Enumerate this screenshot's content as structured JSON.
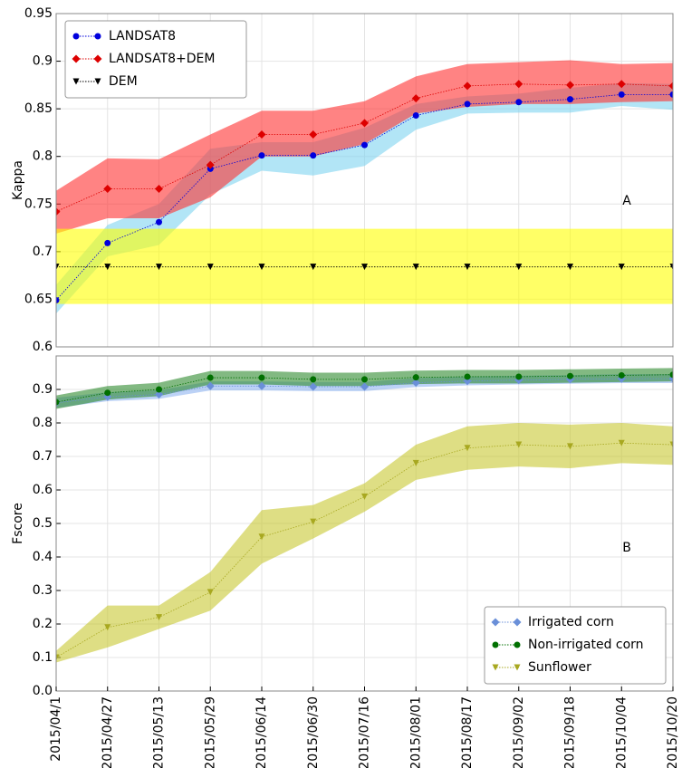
{
  "chart_data": [
    {
      "type": "line",
      "ylabel": "Kappa",
      "annotation": "A",
      "ylim": [
        0.6,
        0.95
      ],
      "yticks": [
        0.6,
        0.65,
        0.7,
        0.75,
        0.8,
        0.85,
        0.9,
        0.95
      ],
      "grid": true,
      "legend": "upper left",
      "series": [
        {
          "name": "LANDSAT8",
          "color": "#0000dd",
          "band_color": "#7fd4f0",
          "marker": "circle",
          "values": [
            0.649,
            0.709,
            0.731,
            0.787,
            0.801,
            0.801,
            0.812,
            0.843,
            0.855,
            0.857,
            0.86,
            0.865,
            0.865
          ],
          "lower": [
            0.635,
            0.695,
            0.707,
            0.76,
            0.785,
            0.78,
            0.79,
            0.828,
            0.845,
            0.846,
            0.846,
            0.853,
            0.849
          ],
          "upper": [
            0.665,
            0.728,
            0.75,
            0.808,
            0.815,
            0.815,
            0.83,
            0.855,
            0.863,
            0.866,
            0.872,
            0.877,
            0.876
          ]
        },
        {
          "name": "LANDSAT8+DEM",
          "color": "#dd0000",
          "band_color": "#ff3030",
          "marker": "diamond",
          "values": [
            0.742,
            0.766,
            0.766,
            0.791,
            0.823,
            0.823,
            0.835,
            0.861,
            0.874,
            0.876,
            0.875,
            0.876,
            0.874
          ],
          "lower": [
            0.719,
            0.735,
            0.735,
            0.757,
            0.8,
            0.8,
            0.813,
            0.845,
            0.852,
            0.855,
            0.855,
            0.857,
            0.858
          ],
          "upper": [
            0.764,
            0.798,
            0.797,
            0.823,
            0.848,
            0.848,
            0.858,
            0.884,
            0.897,
            0.899,
            0.901,
            0.897,
            0.898
          ]
        },
        {
          "name": "DEM",
          "color": "#000000",
          "band_color": "#ffff00",
          "marker": "triangle",
          "values": [
            0.684,
            0.684,
            0.684,
            0.684,
            0.684,
            0.684,
            0.684,
            0.684,
            0.684,
            0.684,
            0.684,
            0.684,
            0.684
          ],
          "lower": [
            0.645,
            0.645,
            0.645,
            0.645,
            0.645,
            0.645,
            0.645,
            0.645,
            0.645,
            0.645,
            0.645,
            0.645,
            0.645
          ],
          "upper": [
            0.724,
            0.724,
            0.724,
            0.724,
            0.724,
            0.724,
            0.724,
            0.724,
            0.724,
            0.724,
            0.724,
            0.724,
            0.724
          ]
        }
      ]
    },
    {
      "type": "line",
      "ylabel": "Fscore",
      "annotation": "B",
      "ylim": [
        0,
        1.0
      ],
      "yticks": [
        {
          "value": 0,
          "label": "0.0"
        },
        0.1,
        0.2,
        0.3,
        0.4,
        0.5,
        0.6,
        0.7,
        0.8,
        0.9
      ],
      "grid": true,
      "legend": "lower right",
      "categories": [
        "2015/04/1",
        "2015/04/27",
        "2015/05/13",
        "2015/05/29",
        "2015/06/14",
        "2015/06/30",
        "2015/07/16",
        "2015/08/01",
        "2015/08/17",
        "2015/09/02",
        "2015/09/18",
        "2015/10/04",
        "2015/10/20"
      ],
      "series": [
        {
          "name": "Irrigated corn",
          "color": "#6a8fd8",
          "band_color": "#8fb4f0",
          "marker": "diamond",
          "values": [
            0.86,
            0.878,
            0.885,
            0.91,
            0.91,
            0.908,
            0.908,
            0.92,
            0.925,
            0.928,
            0.93,
            0.932,
            0.932
          ],
          "lower": [
            0.845,
            0.865,
            0.872,
            0.897,
            0.897,
            0.895,
            0.895,
            0.907,
            0.912,
            0.915,
            0.917,
            0.919,
            0.919
          ],
          "upper": [
            0.875,
            0.892,
            0.898,
            0.924,
            0.924,
            0.922,
            0.922,
            0.934,
            0.939,
            0.941,
            0.943,
            0.946,
            0.946
          ]
        },
        {
          "name": "Non-irrigated corn",
          "color": "#007000",
          "band_color": "#2e8b2e",
          "marker": "circle",
          "values": [
            0.862,
            0.89,
            0.9,
            0.935,
            0.935,
            0.93,
            0.93,
            0.936,
            0.938,
            0.938,
            0.94,
            0.942,
            0.944
          ],
          "lower": [
            0.842,
            0.87,
            0.88,
            0.915,
            0.915,
            0.91,
            0.91,
            0.916,
            0.918,
            0.918,
            0.92,
            0.922,
            0.924
          ],
          "upper": [
            0.882,
            0.91,
            0.92,
            0.955,
            0.955,
            0.95,
            0.95,
            0.956,
            0.958,
            0.958,
            0.96,
            0.962,
            0.964
          ]
        },
        {
          "name": "Sunflower",
          "color": "#a8a820",
          "band_color": "#c8c832",
          "marker": "triangle",
          "values": [
            0.1,
            0.19,
            0.22,
            0.295,
            0.46,
            0.505,
            0.58,
            0.68,
            0.725,
            0.735,
            0.73,
            0.74,
            0.735
          ],
          "lower": [
            0.085,
            0.13,
            0.185,
            0.24,
            0.38,
            0.455,
            0.535,
            0.63,
            0.66,
            0.67,
            0.665,
            0.68,
            0.675
          ],
          "upper": [
            0.12,
            0.255,
            0.255,
            0.355,
            0.54,
            0.555,
            0.62,
            0.735,
            0.79,
            0.8,
            0.795,
            0.8,
            0.79
          ]
        }
      ]
    }
  ]
}
